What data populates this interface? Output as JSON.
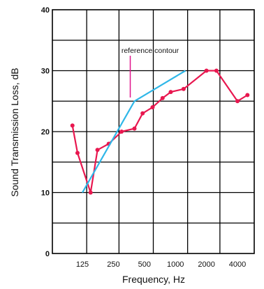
{
  "chart_data": {
    "type": "line",
    "xlabel": "Frequency, Hz",
    "ylabel": "Sound Transmission Loss, dB",
    "ylim": [
      0,
      40
    ],
    "yticks": [
      "0",
      "10",
      "20",
      "30",
      "40"
    ],
    "xticks": [
      "125",
      "250",
      "500",
      "1000",
      "2000",
      "4000"
    ],
    "x_scale": "log",
    "grid": true,
    "annotation": "reference contour",
    "series": [
      {
        "values": [
          {
            "x": 100,
            "y": 21
          },
          {
            "x": 112,
            "y": 16.5
          },
          {
            "x": 150,
            "y": 10
          },
          {
            "x": 175,
            "y": 17
          },
          {
            "x": 225,
            "y": 18
          },
          {
            "x": 300,
            "y": 20
          },
          {
            "x": 400,
            "y": 20.5
          },
          {
            "x": 480,
            "y": 23
          },
          {
            "x": 600,
            "y": 24
          },
          {
            "x": 750,
            "y": 25.5
          },
          {
            "x": 900,
            "y": 26.5
          },
          {
            "x": 1200,
            "y": 27
          },
          {
            "x": 2000,
            "y": 30
          },
          {
            "x": 2500,
            "y": 30
          },
          {
            "x": 4000,
            "y": 25
          },
          {
            "x": 5000,
            "y": 26
          }
        ],
        "color": "#e8174f"
      },
      {
        "values": [
          {
            "x": 125,
            "y": 10
          },
          {
            "x": 400,
            "y": 25
          },
          {
            "x": 1250,
            "y": 30
          }
        ],
        "color": "#2fb7e8"
      }
    ]
  }
}
